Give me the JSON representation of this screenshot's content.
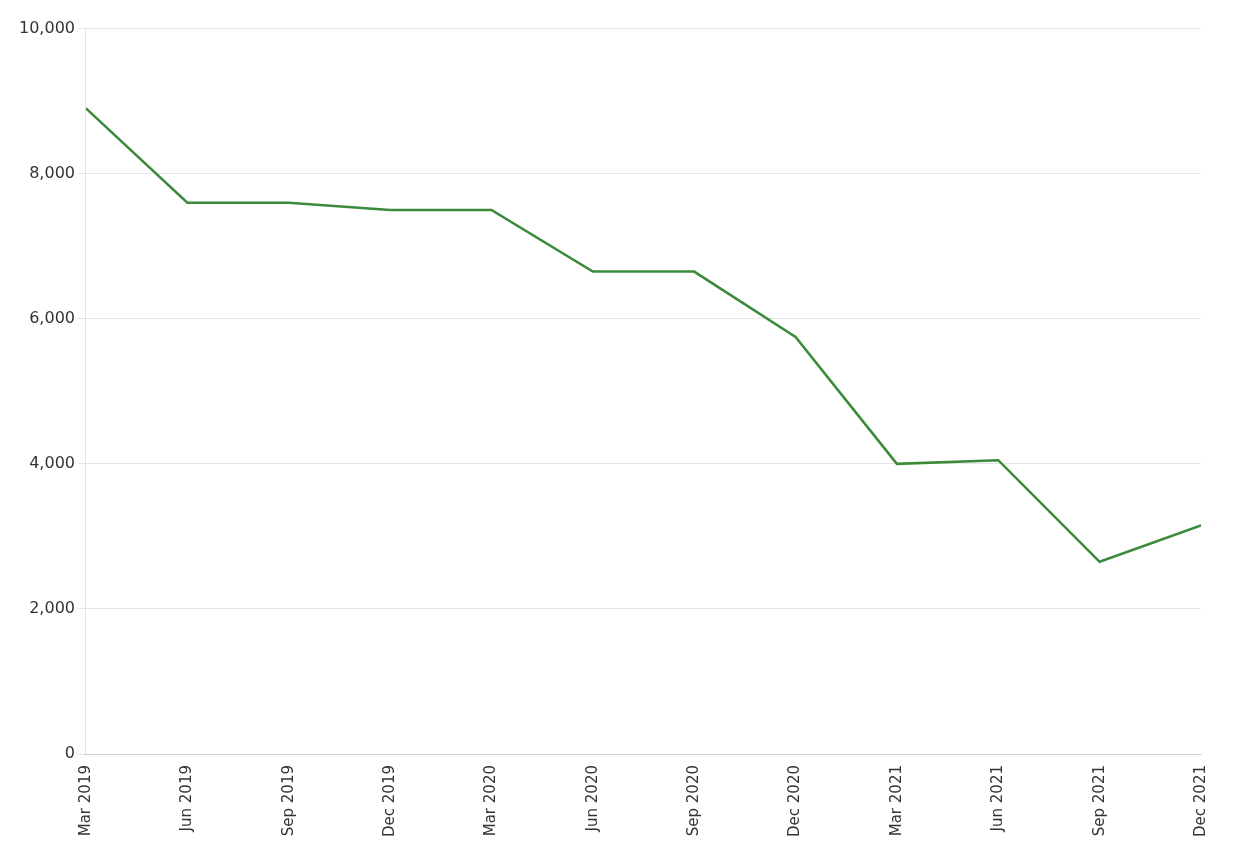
{
  "chart_data": {
    "type": "line",
    "categories": [
      "Mar 2019",
      "Jun 2019",
      "Sep 2019",
      "Dec 2019",
      "Mar 2020",
      "Jun 2020",
      "Sep 2020",
      "Dec 2020",
      "Mar 2021",
      "Jun 2021",
      "Sep 2021",
      "Dec 2021"
    ],
    "values": [
      8900,
      7600,
      7600,
      7500,
      7500,
      6650,
      6650,
      5750,
      4000,
      4050,
      2650,
      3150
    ],
    "color": "#3a8a3a",
    "ylim": [
      0,
      10000
    ],
    "yticks": [
      0,
      {
        "value": 2000,
        "label": "2,000"
      },
      {
        "value": 4000,
        "label": "4,000"
      },
      {
        "value": 6000,
        "label": "6,000"
      },
      {
        "value": 8000,
        "label": "8,000"
      },
      {
        "value": 10000,
        "label": "10,000"
      }
    ],
    "grid": true
  }
}
